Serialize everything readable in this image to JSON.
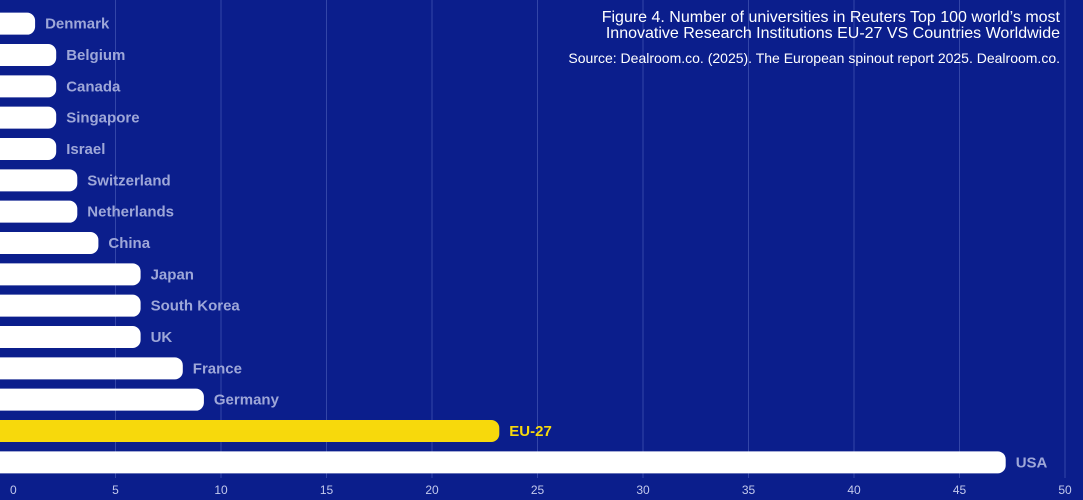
{
  "chart_data": {
    "type": "barh",
    "title": "Figure 4. Number of universities in Reuters Top 100 world’s most Innovative  Research Institutions EU-27 VS Countries Worldwide",
    "subtitle": "Source: Dealroom.co. (2025). The European spinout report 2025. Dealroom.co.",
    "categories": [
      "Denmark",
      "Belgium",
      "Canada",
      "Singapore",
      "Israel",
      "Switzerland",
      "Netherlands",
      "China",
      "Japan",
      "South Korea",
      "UK",
      "France",
      "Germany",
      "EU-27",
      "USA"
    ],
    "values": [
      1,
      2,
      2,
      2,
      2,
      3,
      3,
      4,
      6,
      6,
      6,
      8,
      9,
      23,
      47
    ],
    "colors": [
      "#ffffff",
      "#ffffff",
      "#ffffff",
      "#ffffff",
      "#ffffff",
      "#ffffff",
      "#ffffff",
      "#ffffff",
      "#ffffff",
      "#ffffff",
      "#ffffff",
      "#ffffff",
      "#ffffff",
      "#f7d90c",
      "#ffffff"
    ],
    "xlim": [
      0,
      50
    ],
    "xticks": [
      0,
      5,
      10,
      15,
      20,
      25,
      30,
      35,
      40,
      45,
      50
    ],
    "grid": true
  }
}
